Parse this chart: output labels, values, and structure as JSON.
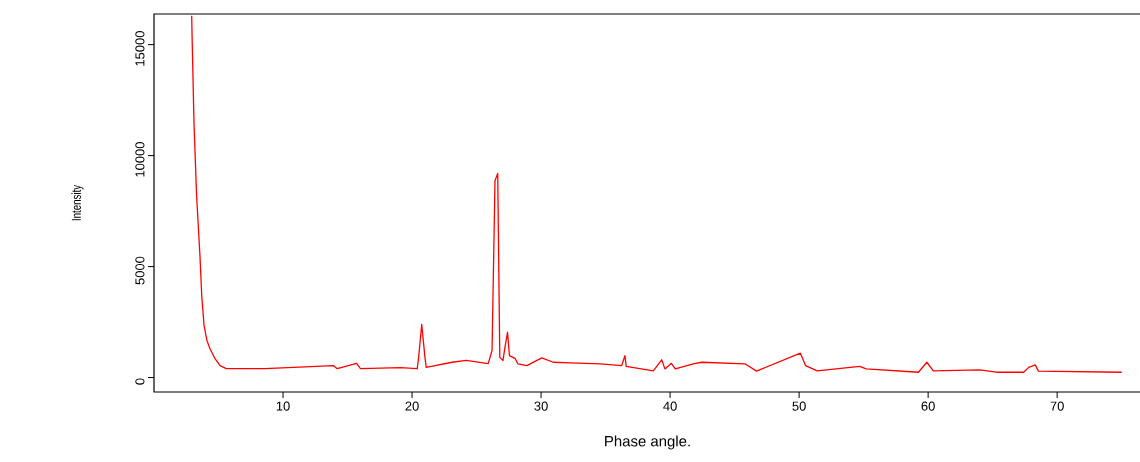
{
  "chart_data": {
    "type": "line",
    "xlabel": "Phase angle.",
    "ylabel": "Intensity",
    "xlim": [
      0,
      76.5
    ],
    "ylim": [
      -650,
      16380
    ],
    "xticks": [
      10,
      20,
      30,
      40,
      50,
      60,
      70
    ],
    "yticks": [
      0,
      5000,
      10000,
      15000
    ],
    "grid": false,
    "marker": "none",
    "line_style": "solid",
    "series": [
      {
        "color": "#ff0000",
        "x": [
          2.92,
          2.95,
          3.1,
          3.3,
          3.56,
          3.7,
          3.88,
          4.1,
          4.34,
          4.73,
          5.12,
          5.6,
          8.6,
          13.9,
          14.2,
          15.7,
          16.0,
          19.1,
          20.4,
          20.5,
          20.75,
          21.0,
          21.1,
          23.1,
          24.2,
          25.9,
          26.2,
          26.43,
          26.64,
          26.8,
          27.05,
          27.2,
          27.4,
          27.55,
          28.0,
          28.2,
          28.9,
          30.05,
          30.95,
          32.25,
          34.6,
          36.25,
          36.5,
          36.6,
          38.7,
          39.35,
          39.6,
          40.1,
          40.4,
          41.8,
          42.45,
          45.8,
          46.7,
          50.1,
          50.5,
          51.4,
          54.7,
          55.2,
          59.25,
          59.9,
          60.4,
          64.0,
          65.3,
          67.4,
          67.8,
          68.3,
          68.55,
          75.0
        ],
        "values": [
          16300,
          15400,
          11450,
          8200,
          5500,
          3690,
          2340,
          1670,
          1300,
          850,
          540,
          400,
          400,
          540,
          400,
          640,
          400,
          450,
          400,
          850,
          2390,
          910,
          460,
          690,
          770,
          630,
          1220,
          8870,
          9200,
          910,
          770,
          1360,
          2040,
          990,
          850,
          620,
          540,
          890,
          690,
          660,
          620,
          540,
          990,
          500,
          300,
          800,
          390,
          640,
          390,
          620,
          690,
          620,
          290,
          1100,
          540,
          300,
          500,
          390,
          240,
          690,
          300,
          350,
          240,
          240,
          460,
          570,
          290,
          240
        ]
      }
    ]
  }
}
